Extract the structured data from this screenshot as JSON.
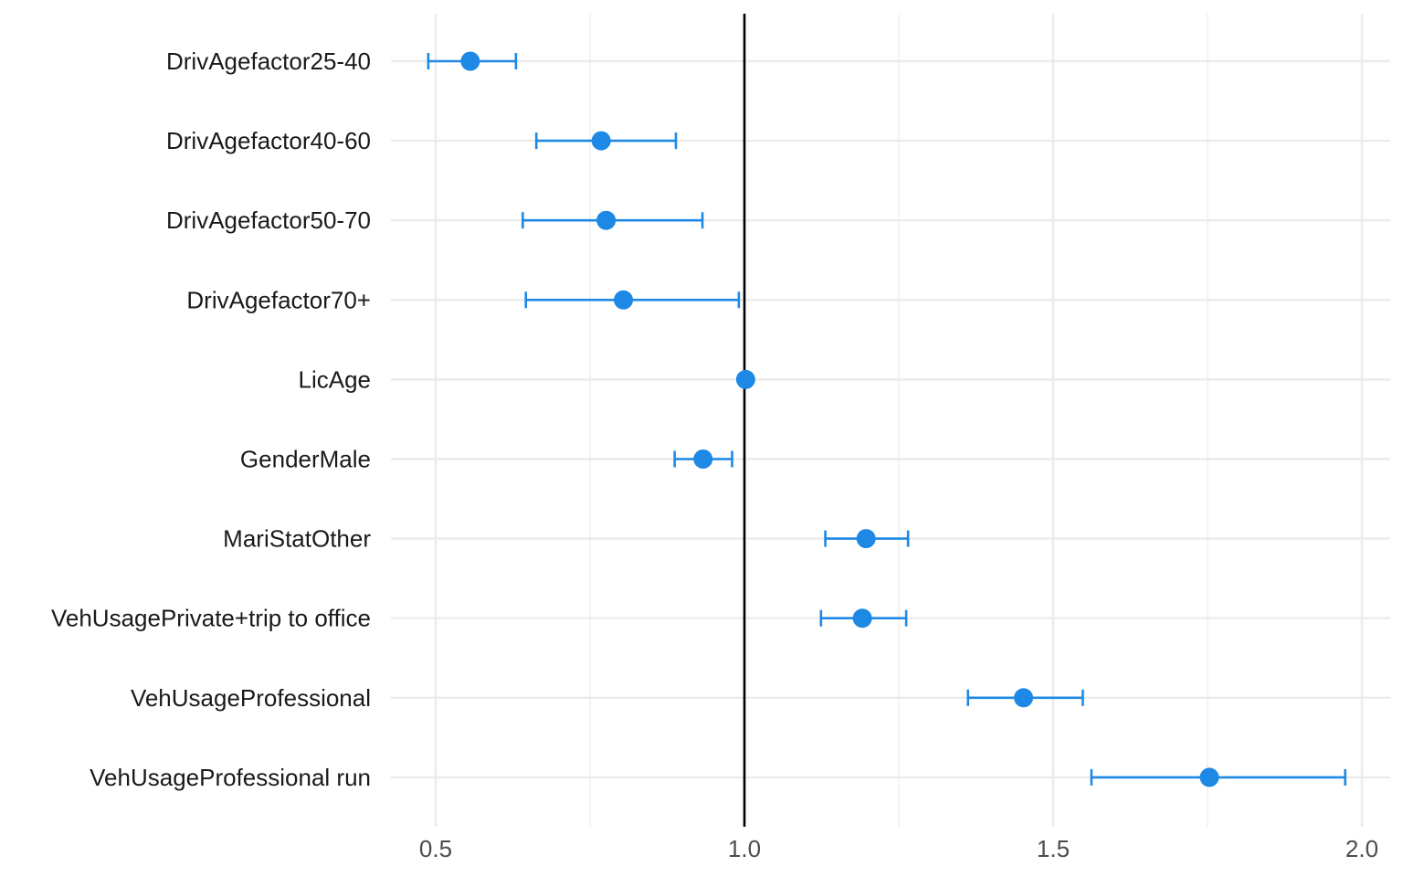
{
  "chart_data": {
    "type": "scatter",
    "subtype": "forest-plot",
    "title": "",
    "xlabel": "",
    "ylabel": "",
    "xlim": [
      0.45,
      2.05
    ],
    "x_ticks": [
      0.5,
      1.0,
      1.5,
      2.0
    ],
    "x_tick_labels": [
      "0.5",
      "1.0",
      "1.5",
      "2.0"
    ],
    "reference_line": 1.0,
    "grid": true,
    "legend": "none",
    "colors": {
      "point": "#1E88E5",
      "reference": "#000000",
      "grid": "#EBEBEB"
    },
    "categories": [
      "DrivAgefactor25-40",
      "DrivAgefactor40-60",
      "DrivAgefactor50-70",
      "DrivAgefactor70+",
      "LicAge",
      "GenderMale",
      "MariStatOther",
      "VehUsagePrivate+trip to office",
      "VehUsageProfessional",
      "VehUsageProfessional run"
    ],
    "estimates": [
      0.556,
      0.768,
      0.776,
      0.804,
      1.002,
      0.933,
      1.197,
      1.191,
      1.452,
      1.753
    ],
    "lower": [
      0.488,
      0.663,
      0.641,
      0.646,
      1.001,
      0.887,
      1.131,
      1.124,
      1.362,
      1.562
    ],
    "upper": [
      0.63,
      0.889,
      0.932,
      0.991,
      1.003,
      0.98,
      1.265,
      1.262,
      1.548,
      1.973
    ]
  }
}
